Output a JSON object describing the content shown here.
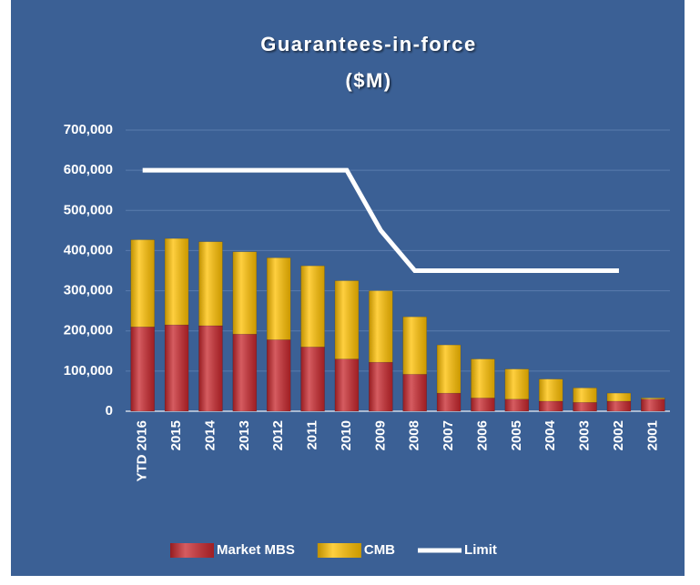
{
  "chart_data": {
    "type": "bar_line",
    "title": "Guarantees-in-force",
    "subtitle": "($M)",
    "categories": [
      "YTD 2016",
      "2015",
      "2014",
      "2013",
      "2012",
      "2011",
      "2010",
      "2009",
      "2008",
      "2007",
      "2006",
      "2005",
      "2004",
      "2003",
      "2002",
      "2001"
    ],
    "series": [
      {
        "name": "Market MBS",
        "type": "bar",
        "stacked": true,
        "color": "#c8262c",
        "values": [
          210000,
          215000,
          213000,
          192000,
          178000,
          160000,
          130000,
          122000,
          92000,
          45000,
          33000,
          30000,
          25000,
          22000,
          25000,
          30000
        ]
      },
      {
        "name": "CMB",
        "type": "bar",
        "stacked": true,
        "color": "#ffc000",
        "values": [
          217000,
          215000,
          209000,
          205000,
          204000,
          202000,
          195000,
          178000,
          143000,
          120000,
          97000,
          75000,
          55000,
          36000,
          20000,
          3000
        ]
      },
      {
        "name": "Limit",
        "type": "line",
        "color": "#ffffff",
        "values": [
          600000,
          600000,
          600000,
          600000,
          600000,
          600000,
          600000,
          450000,
          350000,
          350000,
          350000,
          350000,
          350000,
          350000,
          350000,
          null
        ]
      }
    ],
    "ylim": [
      0,
      700000
    ],
    "yticks": [
      0,
      {
        "value": 100000,
        "label": "100,000"
      },
      {
        "value": 200000,
        "label": "200,000"
      },
      {
        "value": 300000,
        "label": "300,000"
      },
      {
        "value": 400000,
        "label": "400,000"
      },
      {
        "value": 500000,
        "label": "500,000"
      },
      {
        "value": 600000,
        "label": "600,000"
      },
      {
        "value": 700000,
        "label": "700,000"
      }
    ],
    "grid": true,
    "legend": "bottom",
    "background": "#3b6095"
  }
}
